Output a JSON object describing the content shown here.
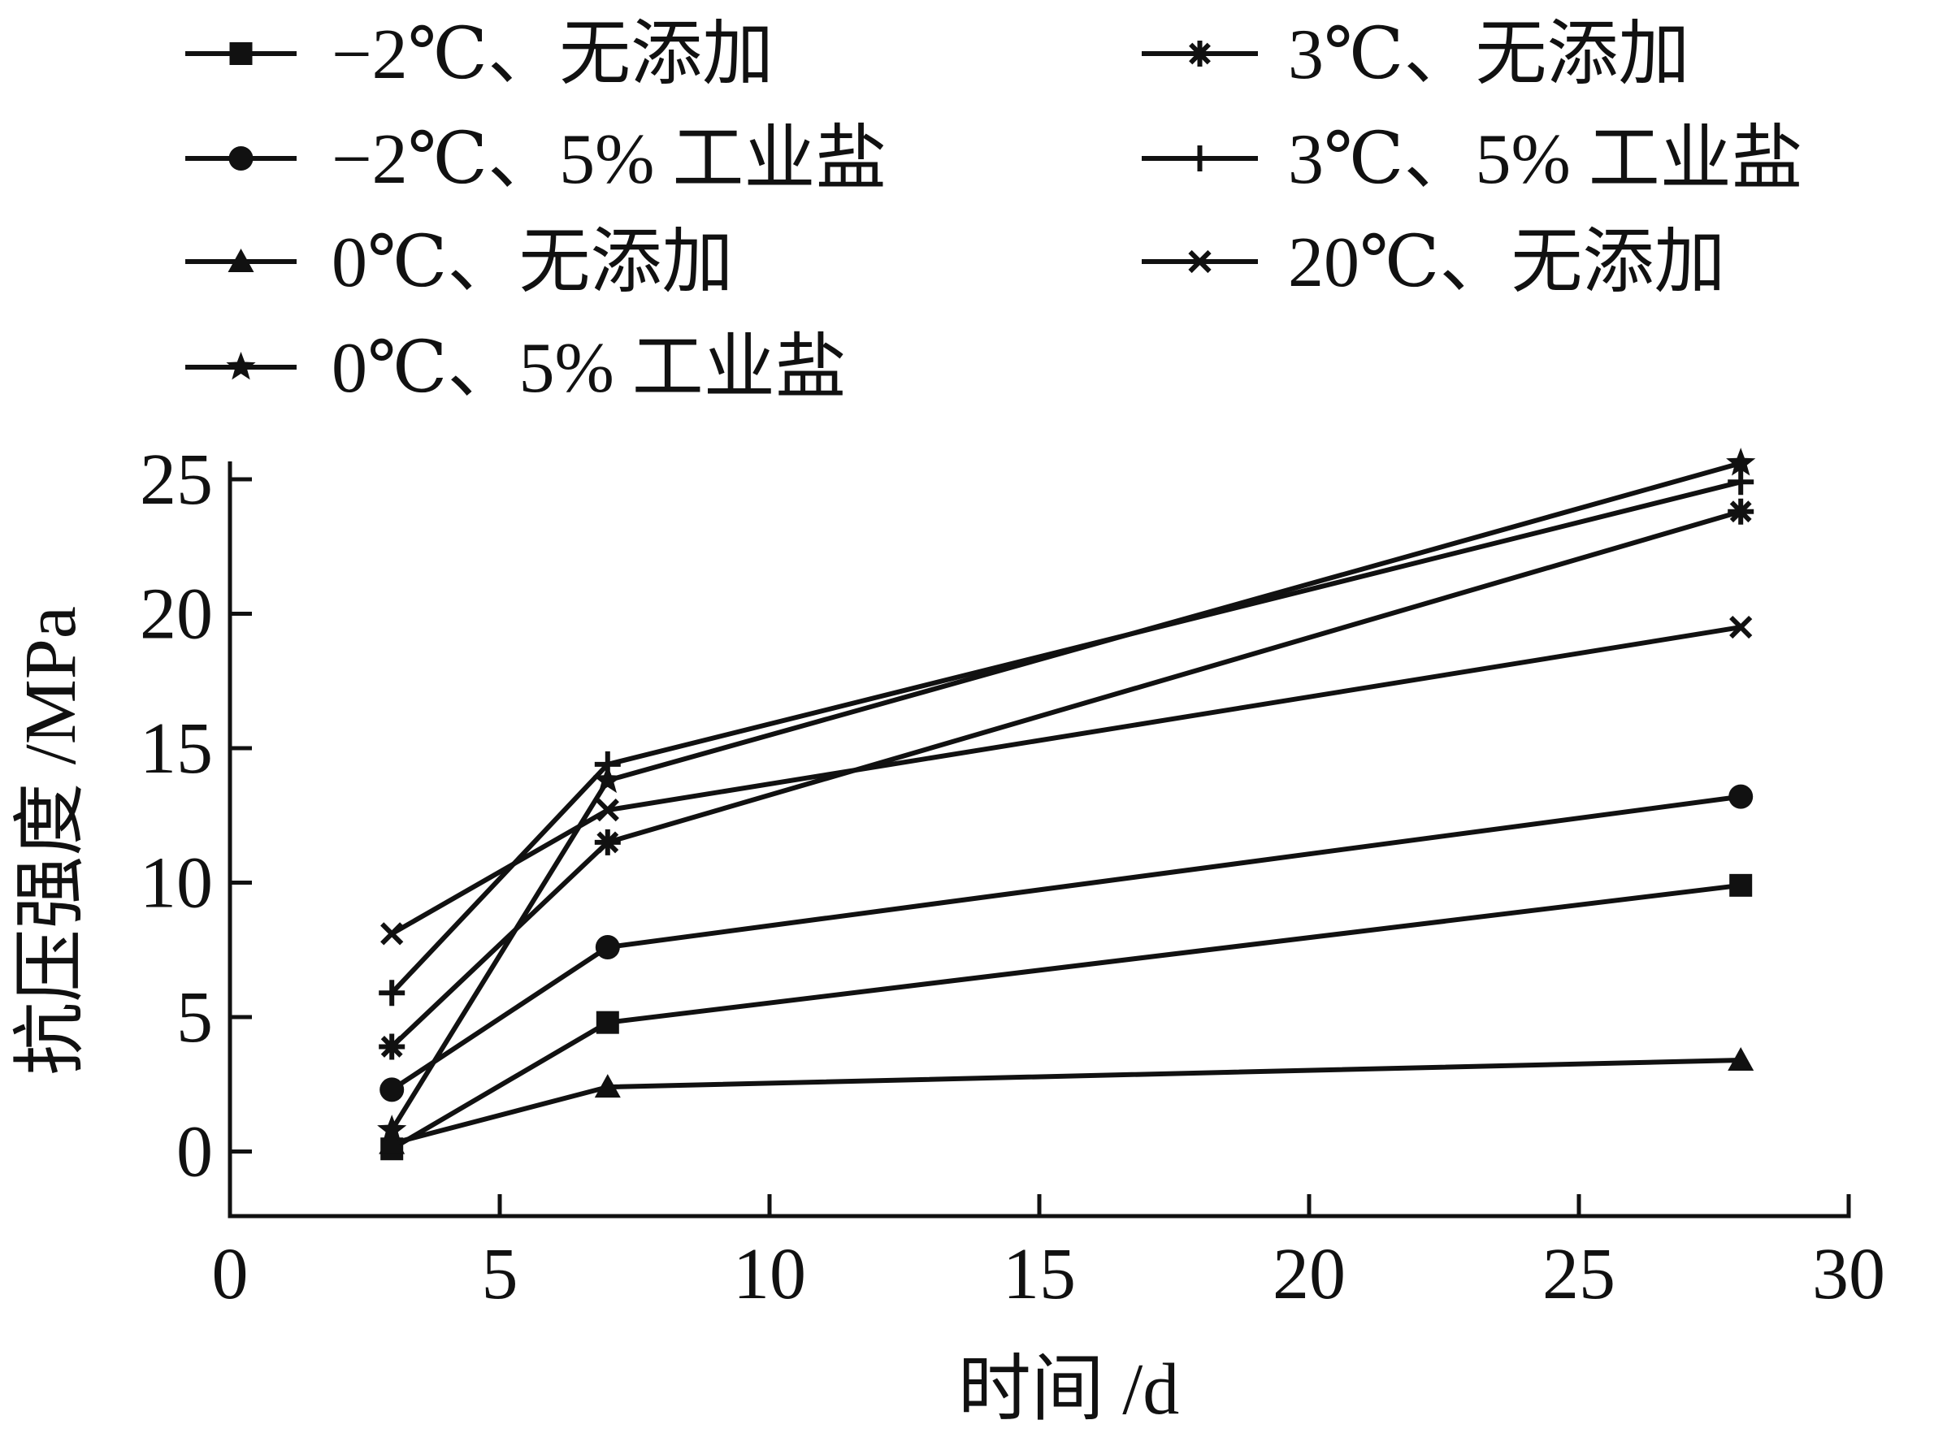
{
  "chart_data": {
    "type": "line",
    "xlabel": "时间 /d",
    "ylabel": "抗压强度 /MPa",
    "xlim": [
      0,
      30
    ],
    "ylim": [
      -2.4,
      25
    ],
    "xticks": [
      "0",
      "5",
      "10",
      "15",
      "20",
      "25",
      "30"
    ],
    "yticks": [
      "0",
      "5",
      "10",
      "15",
      "20",
      "25"
    ],
    "grid": false,
    "legend_position": "top",
    "x": [
      3,
      7,
      28
    ],
    "series": [
      {
        "name": "−2℃、无添加",
        "marker": "square",
        "values": [
          0.1,
          4.8,
          9.9
        ]
      },
      {
        "name": "−2℃、5% 工业盐",
        "marker": "circle",
        "values": [
          2.3,
          7.6,
          13.2
        ]
      },
      {
        "name": "0℃、无添加",
        "marker": "triangle",
        "values": [
          0.3,
          2.4,
          3.4
        ]
      },
      {
        "name": "0℃、5% 工业盐",
        "marker": "star",
        "values": [
          0.8,
          13.8,
          25.6
        ]
      },
      {
        "name": "3℃、无添加",
        "marker": "asterisk",
        "values": [
          3.9,
          11.5,
          23.8
        ]
      },
      {
        "name": "3℃、5% 工业盐",
        "marker": "plus",
        "values": [
          5.9,
          14.4,
          24.9
        ]
      },
      {
        "name": "20℃、无添加",
        "marker": "cross",
        "values": [
          8.1,
          12.7,
          19.5
        ]
      }
    ],
    "colors": {
      "line": "#111111",
      "background": "#ffffff"
    }
  }
}
